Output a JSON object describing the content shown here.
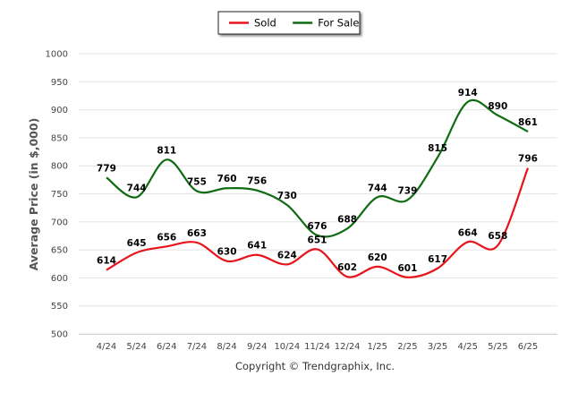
{
  "chart_data": {
    "type": "line",
    "categories": [
      "4/24",
      "5/24",
      "6/24",
      "7/24",
      "8/24",
      "9/24",
      "10/24",
      "11/24",
      "12/24",
      "1/25",
      "2/25",
      "3/25",
      "4/25",
      "5/25",
      "6/25"
    ],
    "series": [
      {
        "name": "Sold",
        "color": "#e8141b",
        "values": [
          614,
          645,
          656,
          663,
          630,
          641,
          624,
          651,
          602,
          620,
          601,
          617,
          664,
          658,
          796
        ]
      },
      {
        "name": "For Sale",
        "color": "#0f6b12",
        "values": [
          779,
          744,
          811,
          755,
          760,
          756,
          730,
          676,
          688,
          744,
          739,
          815,
          914,
          890,
          861
        ]
      }
    ],
    "ylabel": "Average Price (in $,000)",
    "xlabel": "",
    "ylim": [
      500,
      1000
    ],
    "yticks": [
      500,
      550,
      600,
      650,
      700,
      750,
      800,
      850,
      900,
      950,
      1000
    ],
    "grid": true,
    "legend": "top-center",
    "footer": "Copyright © Trendgraphix, Inc."
  }
}
